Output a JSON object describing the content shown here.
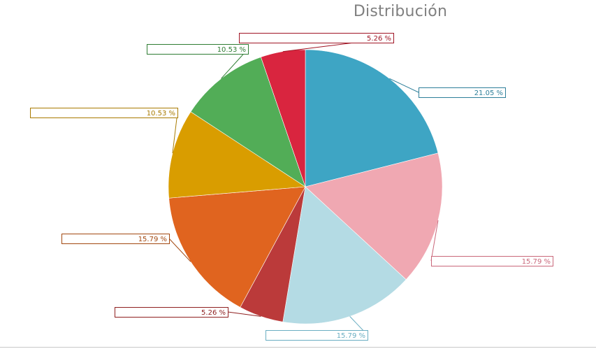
{
  "chart_data": {
    "type": "pie",
    "title": "Distribución",
    "slices": [
      {
        "value": 21.05,
        "label": "21.05 %",
        "color": "#3ea5c4",
        "label_color": "#2e7f9a"
      },
      {
        "value": 15.79,
        "label": "15.79 %",
        "color": "#f0a8b2",
        "label_color": "#c9677a"
      },
      {
        "value": 15.79,
        "label": "15.79 %",
        "color": "#b4dbe4",
        "label_color": "#6aaec2"
      },
      {
        "value": 5.26,
        "label": "5.26 %",
        "color": "#bb3a3a",
        "label_color": "#8f2020"
      },
      {
        "value": 15.79,
        "label": "15.79 %",
        "color": "#e0641f",
        "label_color": "#a34810"
      },
      {
        "value": 10.53,
        "label": "10.53 %",
        "color": "#d99d00",
        "label_color": "#a87a00"
      },
      {
        "value": 10.53,
        "label": "10.53 %",
        "color": "#52ad57",
        "label_color": "#2f7d33"
      },
      {
        "value": 5.26,
        "label": "5.26 %",
        "color": "#d9253f",
        "label_color": "#a01525"
      }
    ]
  }
}
